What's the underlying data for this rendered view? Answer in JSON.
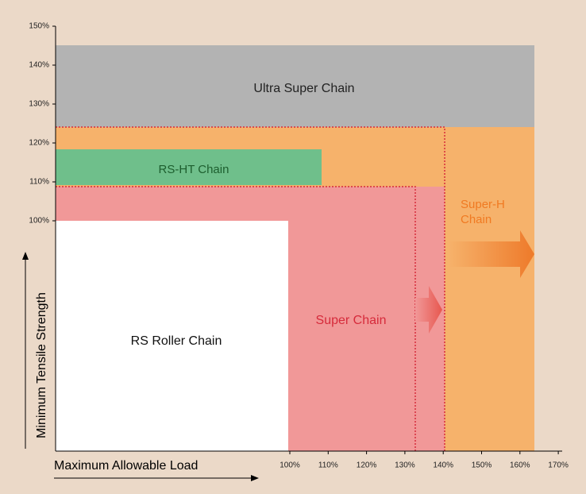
{
  "axes": {
    "y_label": "Minimum Tensile Strength",
    "x_label": "Maximum Allowable Load",
    "y_ticks": [
      "150%",
      "140%",
      "130%",
      "120%",
      "110%",
      "100%"
    ],
    "x_ticks": [
      "100%",
      "110%",
      "120%",
      "130%",
      "140%",
      "150%",
      "160%",
      "170%"
    ]
  },
  "regions": [
    {
      "label": "Ultra Super Chain"
    },
    {
      "label": "RS-HT Chain"
    },
    {
      "label_lines": [
        "Super-H",
        "Chain"
      ]
    },
    {
      "label": "Super Chain"
    },
    {
      "label": "RS Roller Chain"
    }
  ]
}
